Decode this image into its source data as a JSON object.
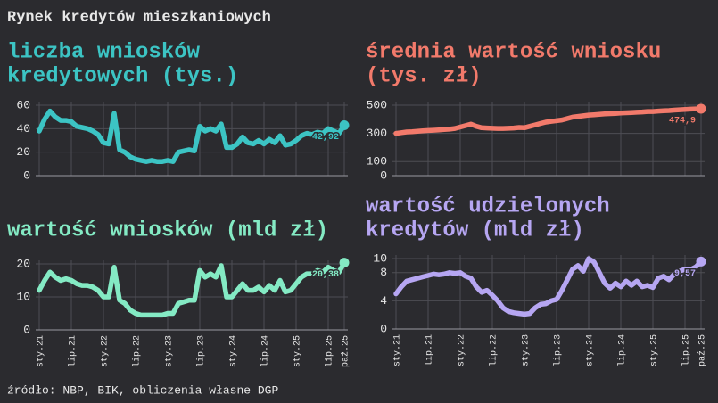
{
  "title": "Rynek kredytów mieszkaniowych",
  "source": "źródło: NBP, BIK, obliczenia własne DGP",
  "chart_data": [
    {
      "type": "line",
      "title": [
        "liczba wniosków",
        "kredytowych (tys.)"
      ],
      "color": "#3cc4c4",
      "ylim": [
        0,
        60
      ],
      "yticks": [
        0,
        20,
        40,
        60
      ],
      "grid": true,
      "end_label": "42,92",
      "values": [
        38,
        48,
        55,
        50,
        47,
        47,
        46,
        42,
        41,
        40,
        38,
        35,
        28,
        27,
        53,
        22,
        20,
        16,
        14,
        13,
        12,
        13,
        12,
        12,
        13,
        12,
        20,
        21,
        22,
        21,
        42,
        38,
        40,
        38,
        44,
        24,
        24,
        27,
        33,
        28,
        27,
        30,
        27,
        31,
        28,
        34,
        26,
        27,
        30,
        34,
        36,
        35,
        37,
        36,
        40,
        38,
        36,
        42.92
      ]
    },
    {
      "type": "line",
      "title": [
        "średnia wartość wniosku",
        "(tys. zł)"
      ],
      "color": "#f27a6b",
      "ylim": [
        0,
        500
      ],
      "yticks": [
        0,
        100,
        300,
        500
      ],
      "grid": true,
      "end_label": "474,9",
      "values": [
        300,
        305,
        310,
        312,
        315,
        318,
        320,
        322,
        325,
        328,
        330,
        335,
        345,
        355,
        365,
        350,
        340,
        338,
        336,
        335,
        335,
        336,
        338,
        342,
        340,
        350,
        360,
        370,
        380,
        385,
        390,
        395,
        405,
        415,
        420,
        425,
        430,
        432,
        435,
        438,
        440,
        442,
        444,
        446,
        448,
        450,
        452,
        455,
        455,
        458,
        460,
        462,
        465,
        468,
        470,
        472,
        474,
        474.9
      ]
    },
    {
      "type": "line",
      "title": [
        "wartość wniosków (mld zł)"
      ],
      "color": "#84eac4",
      "ylim": [
        0,
        20
      ],
      "yticks": [
        0,
        10,
        20
      ],
      "grid": true,
      "end_label": "20,38",
      "categories": [
        "sty.21",
        null,
        null,
        null,
        null,
        null,
        "lip.21",
        null,
        null,
        null,
        null,
        null,
        "sty.22",
        null,
        null,
        null,
        null,
        null,
        "lip.22",
        null,
        null,
        null,
        null,
        null,
        "sty.23",
        null,
        null,
        null,
        null,
        null,
        "lip.23",
        null,
        null,
        null,
        null,
        null,
        "sty.24",
        null,
        null,
        null,
        null,
        null,
        "lip.24",
        null,
        null,
        null,
        null,
        null,
        "sty.25",
        null,
        null,
        null,
        null,
        null,
        "lip.25",
        null,
        null,
        "paź.25"
      ],
      "values": [
        12,
        15,
        17.5,
        16,
        15,
        15.5,
        15,
        14,
        13.5,
        13.5,
        13,
        12,
        10,
        10,
        19,
        9,
        8,
        6,
        5,
        4.5,
        4.5,
        4.5,
        4.5,
        4.5,
        5,
        5,
        8,
        8.5,
        9,
        9,
        18,
        16,
        17,
        16,
        19.5,
        10,
        10,
        12,
        14,
        12,
        12,
        13,
        11.5,
        13.5,
        12,
        15,
        11.5,
        12,
        14,
        16,
        17,
        17,
        18,
        17.5,
        19,
        18,
        17.5,
        20.38
      ]
    },
    {
      "type": "line",
      "title": [
        "wartość udzielonych",
        "kredytów (mld zł)"
      ],
      "color": "#b6a6f2",
      "ylim": [
        0,
        10
      ],
      "yticks": [
        0,
        4,
        8,
        10
      ],
      "grid": true,
      "end_label": "9,57",
      "categories": [
        "sty.21",
        null,
        null,
        null,
        null,
        null,
        "lip.21",
        null,
        null,
        null,
        null,
        null,
        "sty.22",
        null,
        null,
        null,
        null,
        null,
        "lip.22",
        null,
        null,
        null,
        null,
        null,
        "sty.23",
        null,
        null,
        null,
        null,
        null,
        "lip.23",
        null,
        null,
        null,
        null,
        null,
        "sty.24",
        null,
        null,
        null,
        null,
        null,
        "lip.24",
        null,
        null,
        null,
        null,
        null,
        "sty.25",
        null,
        null,
        null,
        null,
        null,
        "lip.25",
        null,
        null,
        "paź.25"
      ],
      "values": [
        5,
        6,
        6.8,
        7,
        7.2,
        7.4,
        7.6,
        7.8,
        7.7,
        7.8,
        8,
        7.9,
        8,
        7.5,
        7.2,
        6,
        5.2,
        5.5,
        4.8,
        4,
        3,
        2.5,
        2.3,
        2.2,
        2.1,
        2.2,
        3,
        3.5,
        3.6,
        4,
        4.2,
        5.5,
        7,
        8.5,
        9,
        8.2,
        10,
        9.5,
        8,
        6.5,
        5.8,
        6.5,
        6,
        6.8,
        6.2,
        6.8,
        6,
        6.2,
        5.9,
        7.2,
        7.5,
        7,
        7.8,
        8.2,
        8.5,
        8.4,
        8.8,
        9.57
      ]
    }
  ]
}
